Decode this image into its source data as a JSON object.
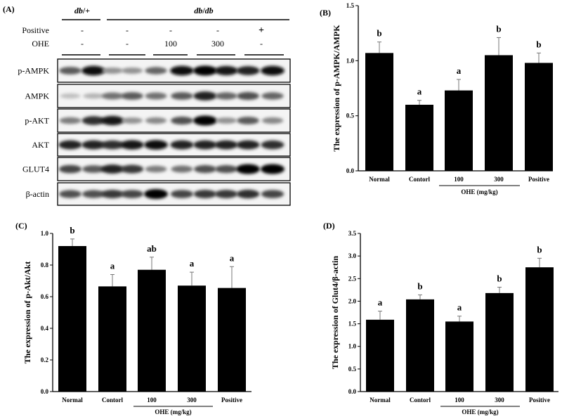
{
  "blot": {
    "panel_label": "(A)",
    "group_labels": [
      {
        "bold_italic": "db",
        "rest": "/+"
      },
      {
        "bold_italic": "db",
        "rest": "/",
        "bold_italic2": "db"
      }
    ],
    "condition_rows": [
      {
        "label": "Positive",
        "values": [
          "-",
          "-",
          "-",
          "-",
          "+"
        ]
      },
      {
        "label": "OHE",
        "values": [
          "-",
          "-",
          "100",
          "300",
          "-"
        ]
      }
    ],
    "bands": [
      {
        "label": "p-AMPK",
        "intensity": [
          0.6,
          0.95,
          0.35,
          0.35,
          0.55,
          0.95,
          1,
          0.9,
          0.85,
          0.95
        ]
      },
      {
        "label": "AMPK",
        "intensity": [
          0.15,
          0.2,
          0.5,
          0.6,
          0.5,
          0.6,
          0.85,
          0.55,
          0.65,
          0.55
        ]
      },
      {
        "label": "p-AKT",
        "intensity": [
          0.45,
          0.8,
          0.9,
          0.35,
          0.4,
          0.65,
          1,
          0.35,
          0.6,
          0.4
        ]
      },
      {
        "label": "AKT",
        "intensity": [
          0.85,
          0.85,
          0.8,
          0.9,
          0.95,
          0.85,
          0.85,
          0.85,
          0.85,
          0.8
        ]
      },
      {
        "label": "GLUT4",
        "intensity": [
          0.7,
          0.6,
          0.85,
          0.75,
          0.45,
          0.5,
          0.65,
          0.65,
          1,
          1
        ]
      },
      {
        "label": "β-actin",
        "intensity": [
          0.65,
          0.65,
          0.75,
          0.7,
          1,
          0.7,
          0.75,
          0.75,
          0.8,
          0.7
        ]
      }
    ]
  },
  "chart_data": [
    {
      "panel_label": "(B)",
      "type": "bar",
      "categories": [
        "Normal",
        "Contorl",
        "100",
        "300",
        "Positive"
      ],
      "group_label": "OHE (mg/kg)",
      "ylabel": "The expression of p-AMPK/AMPK",
      "ylim": [
        0,
        1.5
      ],
      "yticks": [
        "0.0",
        "0.5",
        "1.0",
        "1.5"
      ],
      "values": [
        1.07,
        0.6,
        0.73,
        1.05,
        0.98
      ],
      "errors": [
        0.1,
        0.04,
        0.1,
        0.16,
        0.09
      ],
      "significance": [
        "b",
        "a",
        "a",
        "b",
        "b"
      ],
      "bar_color": "#000000"
    },
    {
      "panel_label": "(C)",
      "type": "bar",
      "categories": [
        "Normal",
        "Contorl",
        "100",
        "300",
        "Positive"
      ],
      "group_label": "OHE (mg/kg)",
      "ylabel": "The expression of p-Akt/Akt",
      "ylim": [
        0,
        1.0
      ],
      "yticks": [
        "0.0",
        "0.2",
        "0.4",
        "0.6",
        "0.8",
        "1.0"
      ],
      "values": [
        0.92,
        0.665,
        0.77,
        0.67,
        0.655
      ],
      "errors": [
        0.045,
        0.075,
        0.08,
        0.085,
        0.135
      ],
      "significance": [
        "b",
        "a",
        "ab",
        "a",
        "a"
      ],
      "bar_color": "#000000"
    },
    {
      "panel_label": "(D)",
      "type": "bar",
      "categories": [
        "Normal",
        "Contorl",
        "100",
        "300",
        "Positive"
      ],
      "group_label": "OHE (mg/kg)",
      "ylabel": "The expression of Glut4/β-actin",
      "ylim": [
        0,
        3.5
      ],
      "yticks": [
        "0.0",
        "0.5",
        "1.0",
        "1.5",
        "2.0",
        "2.5",
        "3.0",
        "3.5"
      ],
      "values": [
        1.59,
        2.04,
        1.55,
        2.18,
        2.75
      ],
      "errors": [
        0.19,
        0.1,
        0.12,
        0.13,
        0.2
      ],
      "significance": [
        "a",
        "b",
        "a",
        "b",
        "b"
      ],
      "bar_color": "#000000"
    }
  ]
}
